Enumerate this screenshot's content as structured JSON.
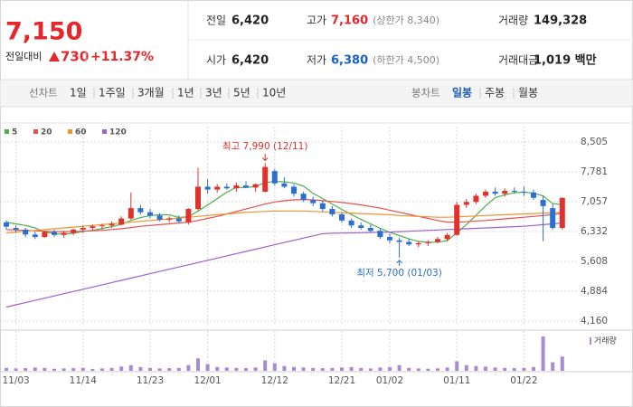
{
  "quote": {
    "price": "7,150",
    "change_label": "전일대비",
    "change": "730",
    "change_pct": "+11.37%"
  },
  "stats": [
    {
      "label": "전일",
      "value": "6,420"
    },
    {
      "label": "고가",
      "value": "7,160",
      "note": "(상한가 8,340)"
    },
    {
      "label": "거래량",
      "value": "149,328"
    },
    {
      "label": "시가",
      "value": "6,420"
    },
    {
      "label": "저가",
      "value": "6,380",
      "note": "(하한가 4,500)"
    },
    {
      "label": "거래대금",
      "value": "1,019 백만"
    }
  ],
  "tabs": {
    "line_chart": {
      "label": "선차트",
      "options": [
        "1일",
        "1주일",
        "3개월",
        "1년",
        "3년",
        "5년",
        "10년"
      ]
    },
    "candle_chart": {
      "label": "봉차트",
      "options": [
        "일봉",
        "주봉",
        "월봉"
      ]
    }
  },
  "chart_data": {
    "type": "candlestick",
    "categories": [
      null,
      "11/03",
      null,
      null,
      null,
      null,
      null,
      null,
      "11/14",
      null,
      null,
      null,
      null,
      null,
      null,
      "11/23",
      null,
      null,
      null,
      null,
      null,
      "12/01",
      null,
      null,
      null,
      null,
      null,
      null,
      "12/12",
      null,
      null,
      null,
      null,
      null,
      null,
      "12/21",
      null,
      null,
      null,
      null,
      "01/02",
      null,
      null,
      null,
      null,
      null,
      null,
      "01/11",
      null,
      null,
      null,
      null,
      null,
      null,
      "01/22",
      null,
      null,
      null,
      null
    ],
    "open": [
      6550,
      6420,
      6380,
      6260,
      6200,
      6320,
      6250,
      6300,
      6380,
      6420,
      6460,
      6480,
      6500,
      6650,
      6900,
      6800,
      6720,
      6620,
      6650,
      6550,
      6880,
      7420,
      7350,
      7420,
      7380,
      7450,
      7400,
      7300,
      7800,
      7500,
      7420,
      7250,
      7100,
      7020,
      6880,
      6750,
      6600,
      6480,
      6420,
      6350,
      6200,
      6120,
      6080,
      6020,
      6050,
      6080,
      6150,
      6250,
      6980,
      7050,
      7200,
      7300,
      7250,
      7320,
      7300,
      7280,
      7100,
      6900,
      6420
    ],
    "high": [
      6600,
      6480,
      6420,
      6330,
      6350,
      6380,
      6350,
      6400,
      6480,
      6500,
      6520,
      6580,
      6700,
      7280,
      6980,
      6880,
      6780,
      6700,
      6720,
      6900,
      7880,
      7600,
      7480,
      7500,
      7520,
      7550,
      7500,
      7990,
      7850,
      7650,
      7480,
      7300,
      7180,
      7080,
      6950,
      6800,
      6650,
      6550,
      6500,
      6420,
      6280,
      6180,
      6150,
      6100,
      6120,
      6200,
      6300,
      7050,
      7120,
      7250,
      7350,
      7400,
      7380,
      7400,
      7420,
      7350,
      7200,
      7000,
      7160
    ],
    "low": [
      6380,
      6300,
      6200,
      6150,
      6180,
      6200,
      6180,
      6250,
      6300,
      6350,
      6380,
      6420,
      6480,
      6620,
      6750,
      6650,
      6580,
      6560,
      6540,
      6500,
      6850,
      7250,
      7280,
      7350,
      7300,
      7380,
      7300,
      7280,
      7450,
      7380,
      7180,
      7050,
      6950,
      6820,
      6700,
      6550,
      6420,
      6380,
      6300,
      6150,
      6050,
      5700,
      5980,
      5950,
      5980,
      6050,
      6100,
      6230,
      6900,
      7000,
      7150,
      7200,
      7180,
      7250,
      7200,
      7100,
      6100,
      6380,
      6380
    ],
    "close": [
      6450,
      6380,
      6260,
      6200,
      6320,
      6250,
      6300,
      6380,
      6420,
      6460,
      6480,
      6520,
      6650,
      6900,
      6800,
      6720,
      6620,
      6650,
      6580,
      6880,
      7420,
      7350,
      7420,
      7380,
      7450,
      7400,
      7480,
      7900,
      7500,
      7420,
      7250,
      7100,
      7020,
      6880,
      6750,
      6600,
      6480,
      6420,
      6350,
      6200,
      6120,
      6080,
      6020,
      6050,
      6080,
      6150,
      6250,
      6980,
      7050,
      7200,
      7300,
      7250,
      7320,
      7300,
      7280,
      7150,
      6950,
      6420,
      7150
    ],
    "up_color": "#e0312c",
    "down_color": "#2a6fd1",
    "series": [
      {
        "name": "5",
        "color": "#4fae4f",
        "values": [
          6560,
          6520,
          6480,
          6420,
          6322,
          6282,
          6266,
          6290,
          6334,
          6362,
          6408,
          6452,
          6506,
          6602,
          6670,
          6718,
          6738,
          6738,
          6674,
          6690,
          6830,
          6976,
          7130,
          7290,
          7404,
          7400,
          7426,
          7522,
          7546,
          7540,
          7510,
          7434,
          7258,
          7134,
          7000,
          6870,
          6746,
          6626,
          6520,
          6410,
          6314,
          6234,
          6154,
          6094,
          6070,
          6076,
          6110,
          6302,
          6502,
          6726,
          6956,
          7156,
          7224,
          7274,
          7290,
          7260,
          7200,
          7010,
          6984
        ]
      },
      {
        "name": "20",
        "color": "#e5514e",
        "values": [
          6380,
          6370,
          6360,
          6350,
          6340,
          6330,
          6330,
          6330,
          6340,
          6350,
          6360,
          6380,
          6400,
          6430,
          6460,
          6480,
          6500,
          6520,
          6540,
          6560,
          6600,
          6650,
          6700,
          6760,
          6820,
          6880,
          6940,
          7000,
          7050,
          7080,
          7100,
          7110,
          7100,
          7080,
          7060,
          7040,
          7010,
          6980,
          6940,
          6900,
          6850,
          6800,
          6750,
          6700,
          6650,
          6600,
          6560,
          6560,
          6570,
          6590,
          6600,
          6620,
          6640,
          6660,
          6680,
          6700,
          6720,
          6740,
          6780
        ]
      },
      {
        "name": "60",
        "color": "#f0922e",
        "values": [
          6300,
          6320,
          6340,
          6360,
          6380,
          6400,
          6420,
          6440,
          6460,
          6480,
          6500,
          6520,
          6540,
          6560,
          6580,
          6600,
          6620,
          6640,
          6660,
          6680,
          6700,
          6720,
          6740,
          6760,
          6780,
          6800,
          6810,
          6820,
          6830,
          6830,
          6830,
          6830,
          6820,
          6810,
          6800,
          6790,
          6780,
          6770,
          6760,
          6750,
          6740,
          6720,
          6710,
          6700,
          6690,
          6680,
          6680,
          6690,
          6700,
          6710,
          6720,
          6730,
          6740,
          6750,
          6760,
          6770,
          6780,
          6790,
          6800
        ]
      },
      {
        "name": "120",
        "color": "#9b62c9",
        "values": [
          4500,
          4554,
          4608,
          4662,
          4716,
          4770,
          4824,
          4878,
          4932,
          4986,
          5040,
          5094,
          5148,
          5202,
          5256,
          5310,
          5364,
          5418,
          5472,
          5526,
          5580,
          5634,
          5688,
          5742,
          5796,
          5850,
          5904,
          5958,
          6012,
          6066,
          6120,
          6174,
          6228,
          6282,
          6290,
          6295,
          6300,
          6305,
          6310,
          6315,
          6320,
          6330,
          6340,
          6350,
          6360,
          6370,
          6380,
          6390,
          6400,
          6410,
          6420,
          6430,
          6440,
          6450,
          6460,
          6480,
          6500,
          6520,
          6540
        ]
      }
    ],
    "ylim": [
      4160,
      8505
    ],
    "yticks": [
      {
        "value": 4160,
        "label": "4,160"
      },
      {
        "value": 4884,
        "label": "4,884"
      },
      {
        "value": 5608,
        "label": "5,608"
      },
      {
        "value": 6332,
        "label": "6,332"
      },
      {
        "value": 7057,
        "label": "7,057"
      },
      {
        "value": 7781,
        "label": "7,781"
      },
      {
        "value": 8505,
        "label": "8,505"
      }
    ],
    "grid": true,
    "annotations": {
      "high": "최고 7,990 (12/11)",
      "low": "최저 5,700 (01/03)"
    },
    "volume": {
      "name": "거래량",
      "color": "#a98bd3",
      "values": [
        30000,
        25000,
        28000,
        35000,
        30000,
        22000,
        25000,
        28000,
        30000,
        20000,
        25000,
        30000,
        45000,
        60000,
        40000,
        30000,
        25000,
        28000,
        30000,
        60000,
        130000,
        70000,
        40000,
        35000,
        30000,
        28000,
        35000,
        110000,
        80000,
        50000,
        40000,
        35000,
        30000,
        28000,
        30000,
        35000,
        40000,
        30000,
        25000,
        35000,
        40000,
        60000,
        30000,
        25000,
        22000,
        25000,
        35000,
        100000,
        60000,
        50000,
        45000,
        35000,
        30000,
        28000,
        30000,
        40000,
        360000,
        90000,
        149328
      ]
    }
  }
}
